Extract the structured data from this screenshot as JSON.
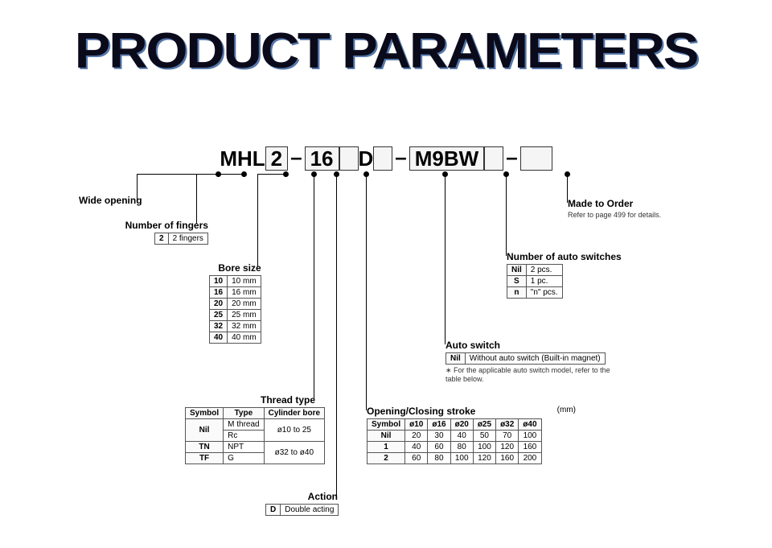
{
  "title": "PRODUCT PARAMETERS",
  "code": {
    "p1": "MHL",
    "p2": "2",
    "p3": "16",
    "p4": "D",
    "p5": "M9BW"
  },
  "wide_opening": {
    "label": "Wide opening"
  },
  "num_fingers": {
    "label": "Number of fingers",
    "rows": [
      [
        "2",
        "2 fingers"
      ]
    ]
  },
  "bore": {
    "label": "Bore size",
    "rows": [
      [
        "10",
        "10 mm"
      ],
      [
        "16",
        "16 mm"
      ],
      [
        "20",
        "20 mm"
      ],
      [
        "25",
        "25 mm"
      ],
      [
        "32",
        "32 mm"
      ],
      [
        "40",
        "40 mm"
      ]
    ]
  },
  "thread": {
    "label": "Thread type",
    "head": [
      "Symbol",
      "Type",
      "Cylinder bore"
    ],
    "rows_html": true,
    "r1": [
      "Nil",
      "M thread",
      "ø10 to 25"
    ],
    "r2": [
      "",
      "Rc",
      ""
    ],
    "r3": [
      "TN",
      "NPT",
      "ø32 to ø40"
    ],
    "r4": [
      "TF",
      "G",
      ""
    ]
  },
  "action": {
    "label": "Action",
    "rows": [
      [
        "D",
        "Double acting"
      ]
    ]
  },
  "stroke": {
    "label": "Opening/Closing stroke",
    "unit": "(mm)",
    "head": [
      "Symbol",
      "ø10",
      "ø16",
      "ø20",
      "ø25",
      "ø32",
      "ø40"
    ],
    "rows": [
      [
        "Nil",
        "20",
        "30",
        "40",
        "50",
        "70",
        "100"
      ],
      [
        "1",
        "40",
        "60",
        "80",
        "100",
        "120",
        "160"
      ],
      [
        "2",
        "60",
        "80",
        "100",
        "120",
        "160",
        "200"
      ]
    ]
  },
  "auto_switch": {
    "label": "Auto switch",
    "rows": [
      [
        "Nil",
        "Without auto switch (Built-in magnet)"
      ]
    ],
    "note": "∗ For the applicable auto switch model, refer to the table below."
  },
  "num_switches": {
    "label": "Number of auto switches",
    "rows": [
      [
        "Nil",
        "2 pcs."
      ],
      [
        "S",
        "1 pc."
      ],
      [
        "n",
        "\"n\" pcs."
      ]
    ]
  },
  "mto": {
    "label": "Made to Order",
    "note": "Refer to page 499 for details."
  }
}
